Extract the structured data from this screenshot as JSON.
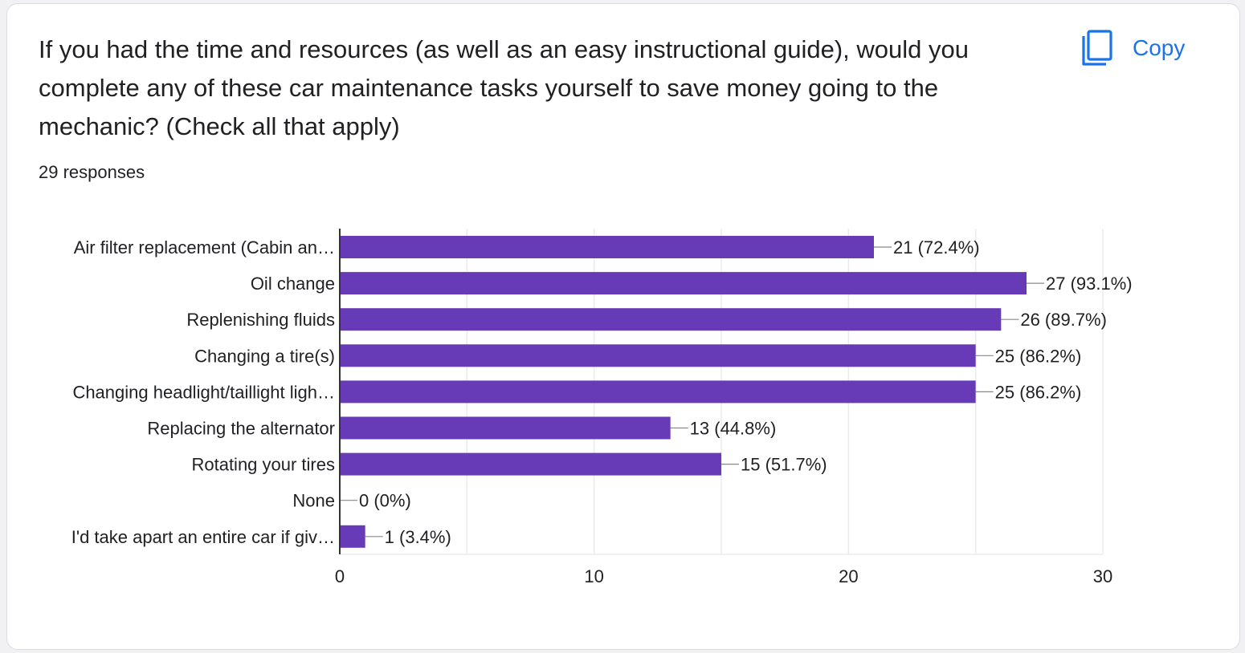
{
  "question": "If you had the time and resources (as well as an easy instructional guide), would you complete any of these car maintenance tasks yourself to save money going to the mechanic? (Check all that apply)",
  "responses": "29 responses",
  "copy_button": {
    "label": "Copy",
    "icon": "copy-icon"
  },
  "colors": {
    "bar": "#673ab7",
    "accent": "#1a73e8",
    "grid": "#ebebeb",
    "axis": "#333333"
  },
  "chart_data": {
    "type": "bar",
    "orientation": "horizontal",
    "categories": [
      "Air filter replacement (Cabin an…",
      "Oil change",
      "Replenishing fluids",
      "Changing a tire(s)",
      "Changing headlight/taillight ligh…",
      "Replacing the alternator",
      "Rotating your tires",
      "None",
      "I'd take apart an entire car if giv…"
    ],
    "values": [
      21,
      27,
      26,
      25,
      25,
      13,
      15,
      0,
      1
    ],
    "data_labels": [
      "21 (72.4%)",
      "27 (93.1%)",
      "26 (89.7%)",
      "25 (86.2%)",
      "25 (86.2%)",
      "13 (44.8%)",
      "15 (51.7%)",
      "0 (0%)",
      "1 (3.4%)"
    ],
    "xlim": [
      0,
      30
    ],
    "xticks": [
      "0",
      "10",
      "20",
      "30"
    ],
    "grid": true,
    "legend": "none"
  }
}
